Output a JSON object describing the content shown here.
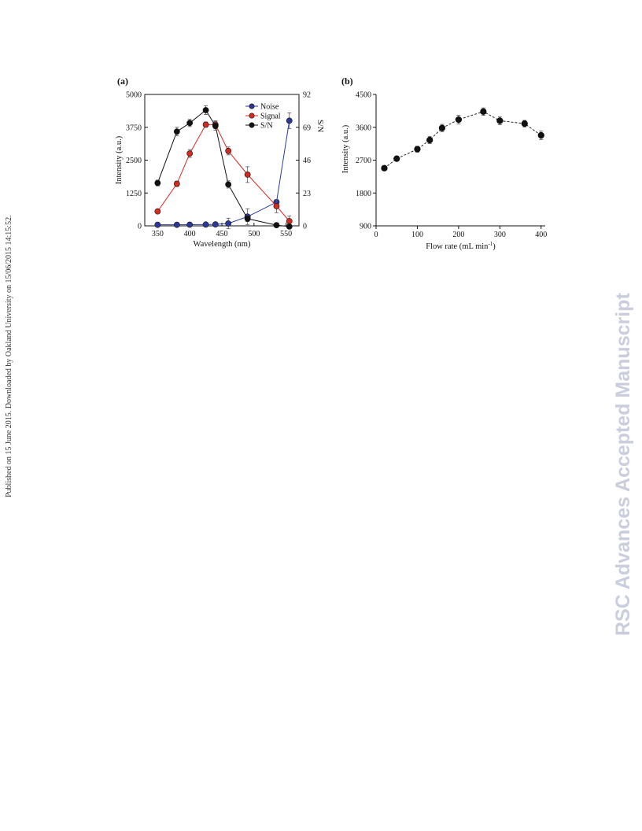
{
  "side_note": "Published on 15 June 2015. Downloaded by Oakland University on 15/06/2015 14:15:52.",
  "watermark": "RSC Advances Accepted Manuscript",
  "chart_data": [
    {
      "type": "line",
      "panel_label": "(a)",
      "xlabel": "Wavelength (nm)",
      "ylabel": "Intensity (a.u.)",
      "y2label": "S/N",
      "xlim": [
        330,
        570
      ],
      "ylim": [
        0,
        5000
      ],
      "y2lim": [
        0,
        92
      ],
      "xticks": [
        350,
        400,
        450,
        500,
        550
      ],
      "yticks": [
        0,
        1250,
        2500,
        3750,
        5000
      ],
      "y2ticks": [
        0,
        23,
        46,
        69,
        92
      ],
      "legend_position": "top-right",
      "series": [
        {
          "name": "Noise",
          "axis": "left",
          "color": "#2b3a9a",
          "x": [
            350,
            380,
            400,
            425,
            440,
            460,
            490,
            535,
            555
          ],
          "y": [
            40,
            40,
            45,
            50,
            55,
            90,
            350,
            900,
            4000
          ],
          "err": [
            20,
            20,
            20,
            25,
            25,
            200,
            300,
            100,
            300
          ]
        },
        {
          "name": "Signal",
          "axis": "left",
          "color": "#d42a20",
          "x": [
            350,
            380,
            400,
            425,
            440,
            460,
            490,
            535,
            555
          ],
          "y": [
            550,
            1600,
            2750,
            3850,
            3850,
            2850,
            1950,
            750,
            180
          ],
          "err": [
            50,
            100,
            150,
            100,
            150,
            150,
            300,
            250,
            200
          ]
        },
        {
          "name": "S/N",
          "axis": "right",
          "color": "#111111",
          "x": [
            350,
            380,
            400,
            425,
            440,
            460,
            490,
            535,
            555
          ],
          "y": [
            30,
            66,
            72,
            81,
            70,
            29,
            5,
            0.5,
            -0.5
          ],
          "err": [
            2,
            3,
            2.5,
            3,
            3,
            2.5,
            2,
            0.5,
            0.5
          ]
        }
      ]
    },
    {
      "type": "line",
      "panel_label": "(b)",
      "xlabel": "Flow rate (mL min",
      "xlabel_sup": "-1",
      "xlabel_end": ")",
      "ylabel": "Intensity (a.u.)",
      "xlim": [
        0,
        410
      ],
      "ylim": [
        900,
        4500
      ],
      "xticks": [
        0,
        100,
        200,
        300,
        400
      ],
      "yticks": [
        900,
        1800,
        2700,
        3600,
        4500
      ],
      "series": [
        {
          "name": "",
          "color": "#111111",
          "x": [
            20,
            50,
            100,
            130,
            160,
            200,
            260,
            300,
            360,
            400
          ],
          "y": [
            2480,
            2740,
            3000,
            3250,
            3580,
            3810,
            4030,
            3780,
            3700,
            3380
          ],
          "err": [
            50,
            60,
            80,
            100,
            100,
            120,
            100,
            110,
            90,
            120
          ]
        }
      ]
    }
  ]
}
